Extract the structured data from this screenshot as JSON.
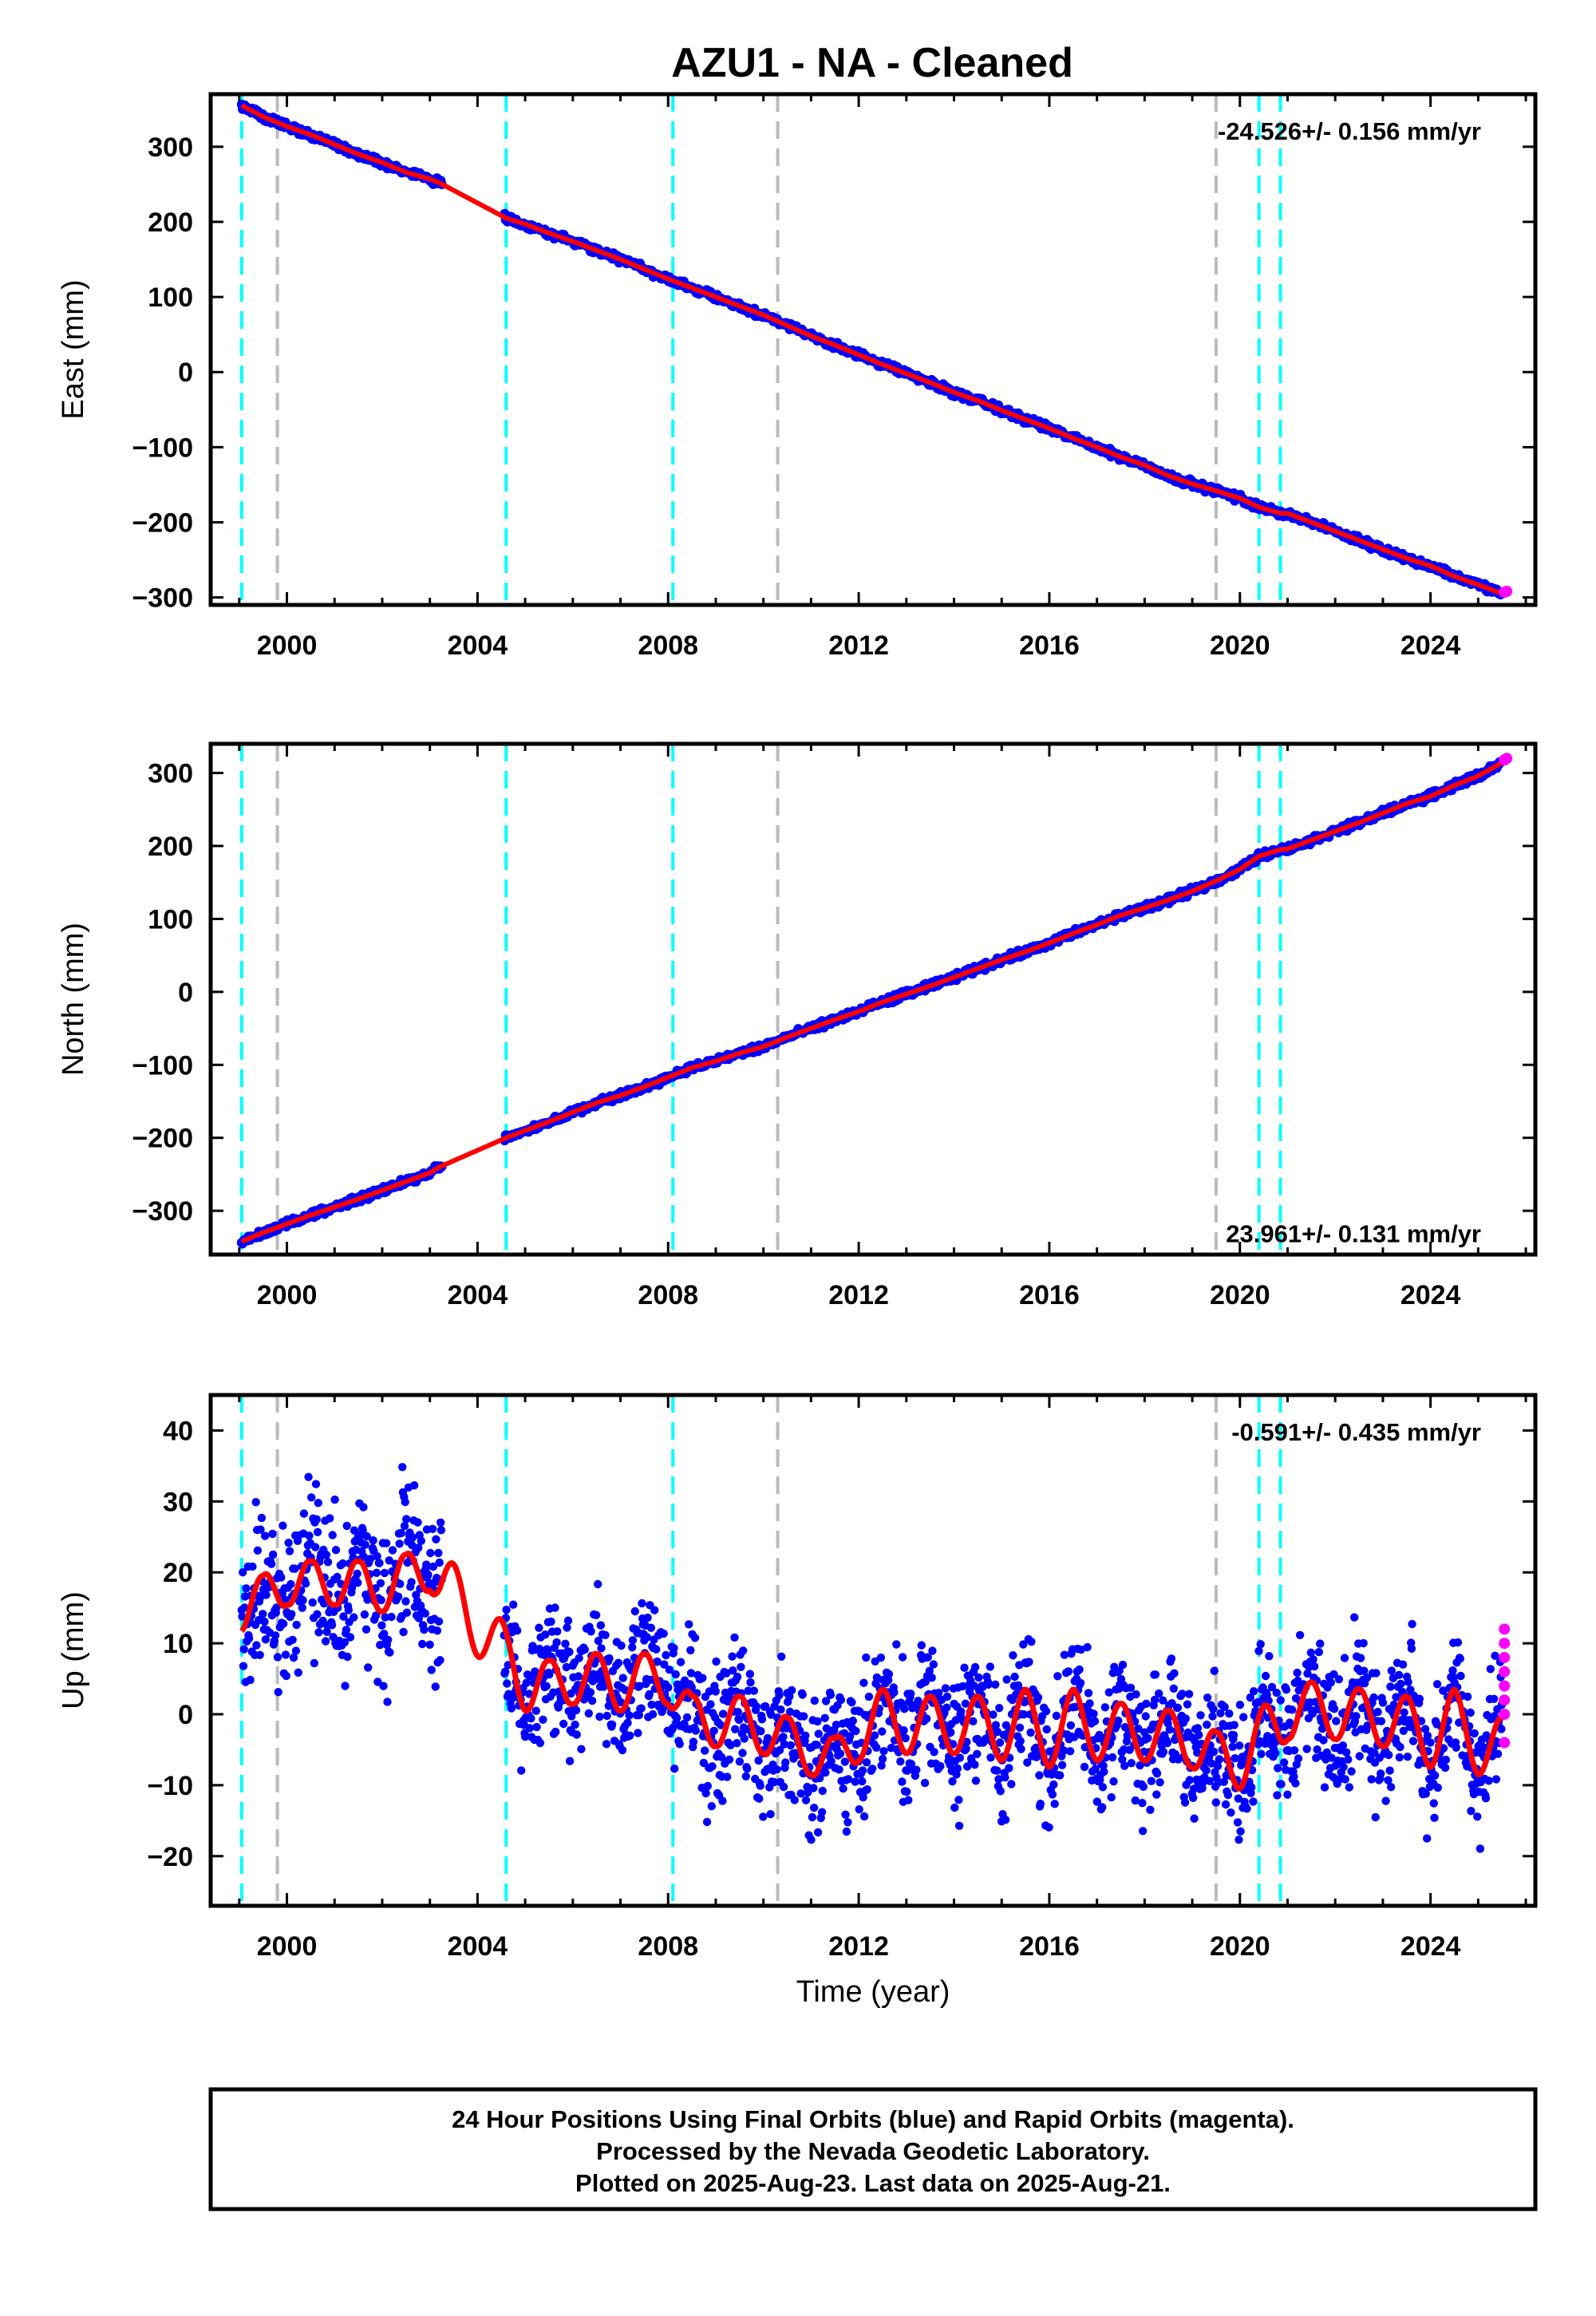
{
  "figure": {
    "title": "AZU1  - NA - Cleaned",
    "footer": [
      "24 Hour Positions Using Final Orbits (blue) and Rapid Orbits (magenta).",
      "Processed by the Nevada Geodetic Laboratory.",
      "Plotted on 2025-Aug-23. Last data on 2025-Aug-21."
    ],
    "colors": {
      "final_orbits": "#0000ff",
      "rapid_orbits": "#ff00ff",
      "model_fit": "#ff0000",
      "equipment_change": "#00ffff",
      "earthquake_or_other": "#bbbbbb",
      "frame": "#000000"
    }
  },
  "chart_data": [
    {
      "type": "scatter",
      "panel": "east",
      "ylabel": "East (mm)",
      "xlabel": "",
      "xlim": [
        1998.4,
        2026.2
      ],
      "ylim": [
        -310,
        370
      ],
      "xticks": [
        2000,
        2004,
        2008,
        2012,
        2016,
        2020,
        2024
      ],
      "yticks": [
        -300,
        -200,
        -100,
        0,
        100,
        200,
        300
      ],
      "rate_label": "-24.526+/- 0.156 mm/yr",
      "rate_position": "top-right",
      "vlines_cyan": [
        1999.05,
        2004.6,
        2008.1,
        2020.4,
        2020.85
      ],
      "vlines_gray": [
        1999.8,
        2010.3,
        2019.5
      ],
      "series": [
        {
          "role": "final",
          "x": [
            1999.05,
            1999.5,
            2000.0,
            2000.5,
            2001.0,
            2001.5,
            2002.0,
            2002.5,
            2003.0,
            2003.2,
            2004.6,
            2005.0,
            2005.5,
            2006.0,
            2006.5,
            2007.0,
            2007.5,
            2008.0,
            2008.5,
            2009.0,
            2009.5,
            2010.0,
            2010.5,
            2011.0,
            2011.5,
            2012.0,
            2012.5,
            2013.0,
            2013.5,
            2014.0,
            2014.5,
            2015.0,
            2015.5,
            2016.0,
            2016.5,
            2017.0,
            2017.5,
            2018.0,
            2018.5,
            2019.0,
            2019.5,
            2020.0,
            2020.4,
            2020.85,
            2021.0,
            2021.5,
            2022.0,
            2022.5,
            2023.0,
            2023.5,
            2024.0,
            2024.5,
            2025.0,
            2025.5
          ],
          "y": [
            355,
            340,
            327,
            316,
            303,
            290,
            279,
            266,
            257,
            252,
            205,
            197,
            185,
            174,
            162,
            150,
            137,
            124,
            112,
            100,
            88,
            76,
            62,
            48,
            36,
            23,
            10,
            -2,
            -14,
            -27,
            -38,
            -51,
            -63,
            -75,
            -88,
            -100,
            -113,
            -124,
            -138,
            -149,
            -158,
            -168,
            -180,
            -188,
            -188,
            -200,
            -212,
            -224,
            -236,
            -248,
            -258,
            -272,
            -283,
            -295
          ]
        },
        {
          "role": "rapid",
          "x": [
            2025.55,
            2025.6
          ],
          "y": [
            -293,
            -292
          ]
        }
      ]
    },
    {
      "type": "scatter",
      "panel": "north",
      "ylabel": "North (mm)",
      "xlabel": "",
      "xlim": [
        1998.4,
        2026.2
      ],
      "ylim": [
        -360,
        340
      ],
      "xticks": [
        2000,
        2004,
        2008,
        2012,
        2016,
        2020,
        2024
      ],
      "yticks": [
        -300,
        -200,
        -100,
        0,
        100,
        200,
        300
      ],
      "rate_label": "23.961+/- 0.131 mm/yr",
      "rate_position": "bottom-right",
      "vlines_cyan": [
        1999.05,
        2004.6,
        2008.1,
        2020.4,
        2020.85
      ],
      "vlines_gray": [
        1999.8,
        2010.3,
        2019.5
      ],
      "series": [
        {
          "role": "final",
          "x": [
            1999.05,
            1999.5,
            2000.0,
            2000.5,
            2001.0,
            2001.5,
            2002.0,
            2002.5,
            2003.0,
            2003.2,
            2004.6,
            2005.0,
            2005.5,
            2006.0,
            2006.5,
            2007.0,
            2007.5,
            2008.0,
            2008.5,
            2009.0,
            2009.5,
            2010.0,
            2010.5,
            2011.0,
            2011.5,
            2012.0,
            2012.5,
            2013.0,
            2013.5,
            2014.0,
            2014.5,
            2015.0,
            2015.5,
            2016.0,
            2016.5,
            2017.0,
            2017.5,
            2018.0,
            2018.5,
            2019.0,
            2019.5,
            2020.0,
            2020.4,
            2020.85,
            2021.0,
            2021.5,
            2022.0,
            2022.5,
            2023.0,
            2023.5,
            2024.0,
            2024.5,
            2025.0,
            2025.5
          ],
          "y": [
            -342,
            -330,
            -318,
            -306,
            -295,
            -284,
            -272,
            -260,
            -248,
            -240,
            -200,
            -190,
            -178,
            -165,
            -152,
            -142,
            -130,
            -117,
            -104,
            -95,
            -84,
            -75,
            -62,
            -50,
            -38,
            -27,
            -14,
            -3,
            8,
            20,
            32,
            44,
            55,
            67,
            80,
            92,
            105,
            115,
            126,
            138,
            152,
            168,
            186,
            195,
            196,
            208,
            220,
            232,
            245,
            258,
            268,
            283,
            296,
            314
          ]
        },
        {
          "role": "rapid",
          "x": [
            2025.55,
            2025.6
          ],
          "y": [
            318,
            320
          ]
        }
      ]
    },
    {
      "type": "scatter",
      "panel": "up",
      "ylabel": "Up (mm)",
      "xlabel": "Time (year)",
      "xlim": [
        1998.4,
        2026.2
      ],
      "ylim": [
        -27,
        45
      ],
      "xticks": [
        2000,
        2004,
        2008,
        2012,
        2016,
        2020,
        2024
      ],
      "yticks": [
        -20,
        -10,
        0,
        10,
        20,
        30,
        40
      ],
      "rate_label": "-0.591+/- 0.435 mm/yr",
      "rate_position": "top-right",
      "vlines_cyan": [
        1999.05,
        2004.6,
        2008.1,
        2020.4,
        2020.85
      ],
      "vlines_gray": [
        1999.8,
        2010.3,
        2019.5
      ],
      "series": [
        {
          "role": "final_mean",
          "x": [
            1999.05,
            1999.5,
            2000.0,
            2000.5,
            2001.0,
            2001.5,
            2002.0,
            2002.5,
            2003.0,
            2003.2,
            2004.6,
            2005.0,
            2005.5,
            2006.0,
            2006.5,
            2007.0,
            2007.5,
            2008.0,
            2008.5,
            2009.0,
            2009.5,
            2010.0,
            2010.5,
            2011.0,
            2011.5,
            2012.0,
            2012.5,
            2013.0,
            2013.5,
            2014.0,
            2014.5,
            2015.0,
            2015.5,
            2016.0,
            2016.5,
            2017.0,
            2017.5,
            2018.0,
            2018.5,
            2019.0,
            2019.5,
            2020.0,
            2020.4,
            2020.85,
            2021.0,
            2021.5,
            2022.0,
            2022.5,
            2023.0,
            2023.5,
            2024.0,
            2024.5,
            2025.0,
            2025.5
          ],
          "y": [
            16,
            15,
            20,
            17,
            20,
            17,
            19,
            18,
            22,
            19,
            8,
            5,
            3,
            6,
            4,
            5,
            4,
            6,
            -2,
            0,
            -2,
            -1,
            -5,
            -4,
            -8,
            -2,
            -1,
            -1,
            -2,
            -1,
            -2,
            -2,
            -1,
            -3,
            -1,
            -2,
            -3,
            -2,
            -4,
            -3,
            -7,
            -6,
            -4,
            -1,
            1,
            0,
            1,
            -1,
            0,
            -2,
            -3,
            -1,
            -4,
            -5
          ]
        },
        {
          "role": "rapid",
          "x": [
            2025.55,
            2025.55,
            2025.55,
            2025.55,
            2025.55,
            2025.55,
            2025.55,
            2025.55
          ],
          "y": [
            12,
            10,
            8,
            6,
            4,
            2,
            0,
            -4
          ]
        }
      ]
    }
  ]
}
